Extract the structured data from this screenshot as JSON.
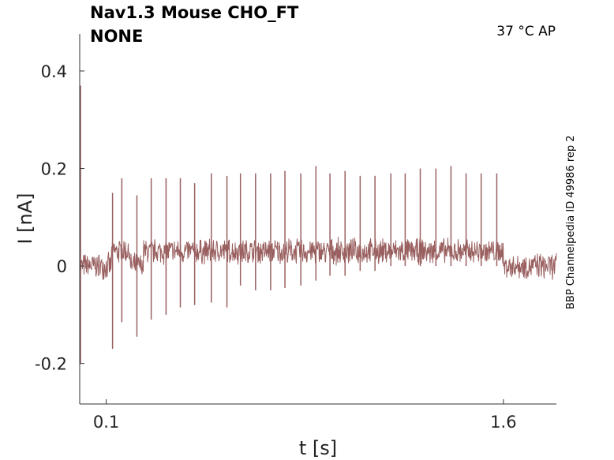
{
  "chart_data": {
    "type": "line",
    "title": "Nav1.3  Mouse  CHO_FT",
    "subtitle": "NONE",
    "condition": "37 °C  AP",
    "side_label": "BBP Channelpedia ID 49986 rep 2",
    "xlabel": "t [s]",
    "ylabel": "I [nA]",
    "xlim": [
      0,
      1.8
    ],
    "ylim": [
      -0.283,
      0.476
    ],
    "xticks": [
      {
        "v": 0.1,
        "label": "0.1"
      },
      {
        "v": 1.6,
        "label": "1.6"
      }
    ],
    "yticks": [
      {
        "v": 0.4,
        "label": "0.4"
      },
      {
        "v": 0.2,
        "label": "0.2"
      },
      {
        "v": 0,
        "label": "0"
      },
      {
        "v": -0.2,
        "label": "-0.2"
      }
    ],
    "color": "#9a6060",
    "initial_transient": {
      "t": 0.0,
      "max": 0.37,
      "min": -0.2
    },
    "baseline_segments": [
      {
        "t0": 0,
        "t1": 0.12,
        "level": 0.0
      },
      {
        "t0": 0.12,
        "t1": 0.19,
        "level": 0.03
      },
      {
        "t0": 0.19,
        "t1": 0.24,
        "level": 0.0
      },
      {
        "t0": 0.24,
        "t1": 1.6,
        "level": 0.03
      },
      {
        "t0": 1.6,
        "t1": 1.8,
        "level": 0.0
      }
    ],
    "noise_amplitude": 0.015,
    "spikes": [
      {
        "t": 0.124,
        "peak": 0.15,
        "trough": -0.17
      },
      {
        "t": 0.159,
        "peak": 0.18,
        "trough": -0.115
      },
      {
        "t": 0.216,
        "peak": 0.145,
        "trough": -0.145
      },
      {
        "t": 0.27,
        "peak": 0.18,
        "trough": -0.11
      },
      {
        "t": 0.326,
        "peak": 0.18,
        "trough": -0.1
      },
      {
        "t": 0.38,
        "peak": 0.18,
        "trough": -0.085
      },
      {
        "t": 0.434,
        "peak": 0.17,
        "trough": -0.08
      },
      {
        "t": 0.497,
        "peak": 0.19,
        "trough": -0.075
      },
      {
        "t": 0.556,
        "peak": 0.185,
        "trough": -0.085
      },
      {
        "t": 0.607,
        "peak": 0.19,
        "trough": -0.04
      },
      {
        "t": 0.664,
        "peak": 0.19,
        "trough": -0.05
      },
      {
        "t": 0.721,
        "peak": 0.19,
        "trough": -0.05
      },
      {
        "t": 0.775,
        "peak": 0.195,
        "trough": -0.045
      },
      {
        "t": 0.835,
        "peak": 0.19,
        "trough": -0.04
      },
      {
        "t": 0.892,
        "peak": 0.205,
        "trough": -0.03
      },
      {
        "t": 0.945,
        "peak": 0.19,
        "trough": -0.02
      },
      {
        "t": 1.002,
        "peak": 0.195,
        "trough": -0.02
      },
      {
        "t": 1.059,
        "peak": 0.185,
        "trough": -0.01
      },
      {
        "t": 1.115,
        "peak": 0.185,
        "trough": -0.01
      },
      {
        "t": 1.175,
        "peak": 0.19,
        "trough": 0.0
      },
      {
        "t": 1.229,
        "peak": 0.19,
        "trough": 0.0
      },
      {
        "t": 1.286,
        "peak": 0.2,
        "trough": 0.0
      },
      {
        "t": 1.345,
        "peak": 0.2,
        "trough": 0.0
      },
      {
        "t": 1.402,
        "peak": 0.205,
        "trough": 0.0
      },
      {
        "t": 1.459,
        "peak": 0.19,
        "trough": 0.0
      },
      {
        "t": 1.516,
        "peak": 0.19,
        "trough": 0.0
      },
      {
        "t": 1.575,
        "peak": 0.19,
        "trough": 0.0
      }
    ]
  }
}
